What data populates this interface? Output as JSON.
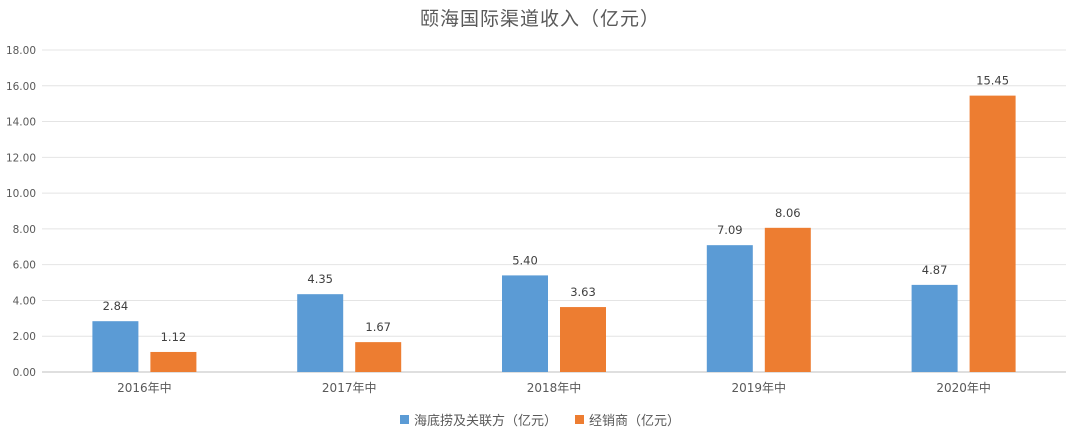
{
  "chart_data": {
    "type": "bar",
    "title": "颐海国际渠道收入（亿元）",
    "categories": [
      "2016年中",
      "2017年中",
      "2018年中",
      "2019年中",
      "2020年中"
    ],
    "series": [
      {
        "name": "海底捞及关联方（亿元）",
        "color": "#5B9BD5",
        "values": [
          2.84,
          4.35,
          5.4,
          7.09,
          4.87
        ],
        "labels": [
          "2.84",
          "4.35",
          "5.40",
          "7.09",
          "4.87"
        ]
      },
      {
        "name": "经销商（亿元）",
        "color": "#ED7D31",
        "values": [
          1.12,
          1.67,
          3.63,
          8.06,
          15.45
        ],
        "labels": [
          "1.12",
          "1.67",
          "3.63",
          "8.06",
          "15.45"
        ]
      }
    ],
    "ylim": [
      0,
      18
    ],
    "yticks": [
      "0.00",
      "2.00",
      "4.00",
      "6.00",
      "8.00",
      "10.00",
      "12.00",
      "14.00",
      "16.00",
      "18.00"
    ],
    "xlabel": "",
    "ylabel": "",
    "grid": true,
    "legend_position": "bottom"
  }
}
